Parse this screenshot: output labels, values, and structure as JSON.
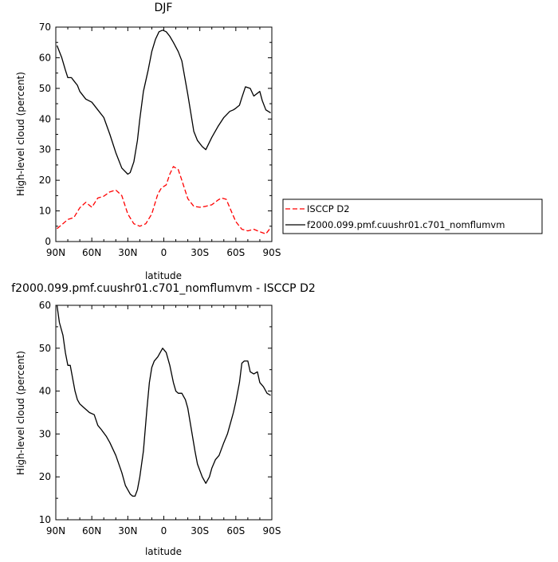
{
  "chart_data": [
    {
      "type": "line",
      "title": "DJF",
      "xlabel": "latitude",
      "ylabel": "High-level cloud (percent)",
      "xlim": [
        90,
        -90
      ],
      "ylim": [
        0,
        70
      ],
      "x_ticks": [
        90,
        60,
        30,
        0,
        -30,
        -60,
        -90
      ],
      "x_tick_labels": [
        "90N",
        "60N",
        "30N",
        "0",
        "30S",
        "60S",
        "90S"
      ],
      "y_ticks": [
        0,
        10,
        20,
        30,
        40,
        50,
        60,
        70
      ],
      "y_tick_labels": [
        "0",
        "10",
        "20",
        "30",
        "40",
        "50",
        "60",
        "70"
      ],
      "legend_position": "right",
      "series": [
        {
          "name": "ISCCP D2",
          "color": "#ff0000",
          "dash": "dashed",
          "x": [
            89,
            85,
            80,
            75,
            70,
            65,
            60,
            55,
            50,
            45,
            40,
            35,
            30,
            25,
            20,
            15,
            10,
            5,
            2,
            -2,
            -5,
            -8,
            -12,
            -15,
            -20,
            -25,
            -30,
            -35,
            -40,
            -45,
            -48,
            -52,
            -55,
            -60,
            -65,
            -70,
            -75,
            -80,
            -85,
            -89
          ],
          "values": [
            4.2,
            5.5,
            7.2,
            7.8,
            11.0,
            12.8,
            11.2,
            14.2,
            14.8,
            16.2,
            16.8,
            15.0,
            9.0,
            5.8,
            5.0,
            5.8,
            9.0,
            15.5,
            17.5,
            18.5,
            22.0,
            24.5,
            23.5,
            20.0,
            14.0,
            11.5,
            11.2,
            11.5,
            12.0,
            13.5,
            14.2,
            13.8,
            11.0,
            6.5,
            4.0,
            3.5,
            4.0,
            3.2,
            2.5,
            4.5
          ]
        },
        {
          "name": "f2000.099.pmf.cuushr01.c701_nomflumvm",
          "color": "#000000",
          "dash": "solid",
          "x": [
            89,
            85,
            82,
            80,
            77,
            75,
            72,
            70,
            65,
            60,
            55,
            50,
            45,
            40,
            35,
            30,
            28,
            25,
            22,
            20,
            17,
            13,
            10,
            7,
            4,
            1,
            -2,
            -5,
            -8,
            -12,
            -15,
            -20,
            -25,
            -28,
            -32,
            -35,
            -40,
            -45,
            -50,
            -55,
            -58,
            -60,
            -63,
            -65,
            -68,
            -72,
            -75,
            -80,
            -82,
            -85,
            -89
          ],
          "values": [
            64.0,
            60.0,
            56.0,
            53.5,
            53.5,
            52.5,
            51.0,
            49.0,
            46.5,
            45.5,
            43.0,
            40.5,
            35.0,
            29.0,
            24.0,
            22.0,
            22.5,
            26.0,
            33.0,
            40.0,
            49.0,
            56.0,
            62.0,
            66.0,
            68.5,
            69.0,
            68.5,
            67.0,
            65.0,
            62.0,
            59.0,
            48.0,
            36.0,
            33.0,
            31.0,
            30.0,
            34.0,
            37.5,
            40.5,
            42.5,
            43.0,
            43.5,
            44.5,
            47.0,
            50.5,
            50.0,
            47.5,
            49.0,
            46.0,
            43.0,
            42.0
          ]
        }
      ]
    },
    {
      "type": "line",
      "title": "f2000.099.pmf.cuushr01.c701_nomflumvm - ISCCP D2",
      "xlabel": "latitude",
      "ylabel": "High-level cloud (percent)",
      "xlim": [
        90,
        -90
      ],
      "ylim": [
        10,
        60
      ],
      "x_ticks": [
        90,
        60,
        30,
        0,
        -30,
        -60,
        -90
      ],
      "x_tick_labels": [
        "90N",
        "60N",
        "30N",
        "0",
        "30S",
        "60S",
        "90S"
      ],
      "y_ticks": [
        10,
        20,
        30,
        40,
        50,
        60
      ],
      "y_tick_labels": [
        "10",
        "20",
        "30",
        "40",
        "50",
        "60"
      ],
      "series": [
        {
          "color": "#000000",
          "dash": "solid",
          "x": [
            89,
            87,
            84,
            82,
            80,
            78,
            76,
            74,
            72,
            70,
            66,
            62,
            58,
            55,
            52,
            48,
            45,
            40,
            35,
            32,
            30,
            28,
            26,
            24,
            22,
            20,
            17,
            14,
            12,
            10,
            8,
            5,
            3,
            1,
            -2,
            -5,
            -8,
            -10,
            -12,
            -15,
            -18,
            -20,
            -23,
            -26,
            -28,
            -32,
            -35,
            -38,
            -40,
            -43,
            -46,
            -50,
            -53,
            -56,
            -58,
            -60,
            -63,
            -65,
            -67,
            -70,
            -72,
            -75,
            -78,
            -80,
            -83,
            -86,
            -89
          ],
          "values": [
            60.0,
            56.0,
            53.0,
            49.0,
            46.0,
            46.0,
            43.0,
            40.0,
            38.0,
            37.0,
            36.0,
            35.0,
            34.5,
            32.0,
            31.0,
            29.5,
            28.0,
            25.0,
            21.0,
            18.0,
            17.0,
            16.0,
            15.5,
            15.5,
            17.0,
            20.0,
            26.0,
            36.0,
            42.0,
            45.5,
            47.0,
            48.0,
            49.0,
            50.0,
            49.0,
            46.0,
            42.0,
            40.0,
            39.5,
            39.5,
            38.0,
            36.0,
            31.0,
            26.0,
            23.0,
            20.0,
            18.5,
            20.0,
            22.0,
            24.0,
            25.0,
            28.0,
            30.0,
            33.0,
            35.0,
            37.5,
            42.0,
            46.5,
            47.0,
            47.0,
            44.5,
            44.0,
            44.5,
            42.0,
            41.0,
            39.5,
            39.0
          ]
        }
      ]
    }
  ]
}
